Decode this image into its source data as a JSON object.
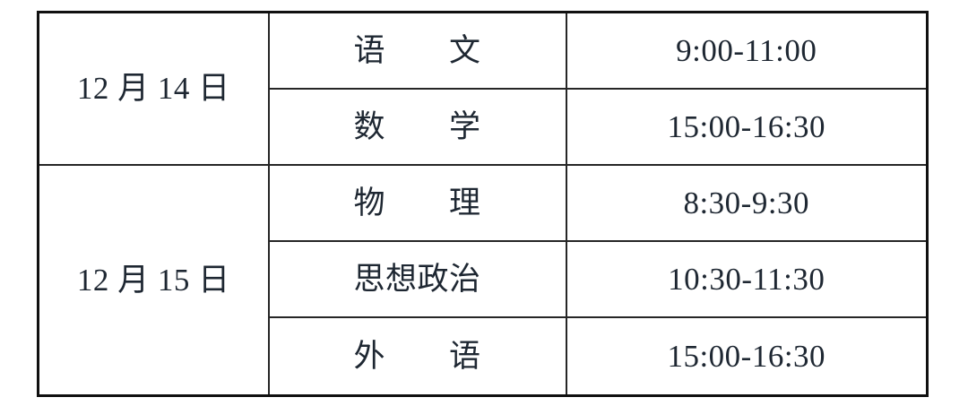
{
  "page": {
    "background_color": "#ffffff"
  },
  "table": {
    "description": "exam-schedule-table",
    "border_color": "#101010",
    "inner_line_color": "#262626",
    "text_color": "#1e2732",
    "sections": [
      {
        "date": "12 月 14 日",
        "rows": [
          {
            "subject": "语　　文",
            "time": "9:00-11:00"
          },
          {
            "subject": "数　　学",
            "time": "15:00-16:30"
          }
        ]
      },
      {
        "date": "12 月 15 日",
        "rows": [
          {
            "subject": "物　　理",
            "time": "8:30-9:30"
          },
          {
            "subject": "思想政治",
            "time": "10:30-11:30"
          },
          {
            "subject": "外　　语",
            "time": "15:00-16:30"
          }
        ]
      }
    ]
  }
}
